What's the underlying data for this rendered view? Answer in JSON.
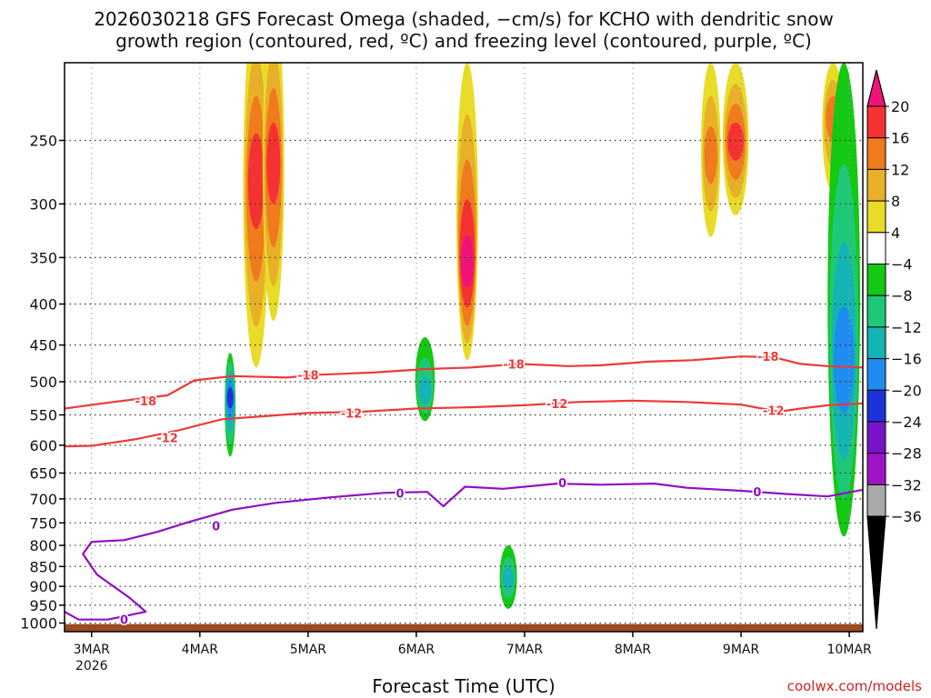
{
  "chart_data": {
    "type": "heatmap",
    "title": "2026030218 GFS Forecast Omega (shaded, −cm/s) for KCHO with dendritic snow growth region (contoured, red, °C) and freezing level (contoured, purple, °C)",
    "title_lines": [
      "2026030218 GFS Forecast Omega (shaded, −cm/s) for KCHO with dendritic snow",
      "growth region (contoured, red, ºC) and freezing level (contoured, purple, ºC)"
    ],
    "xlabel": "Forecast Time (UTC)",
    "ylabel": "",
    "credit": "coolwx.com/models",
    "x_start_day": 2.75,
    "x_end_day": 10.125,
    "x_ticks": [
      {
        "day": 3,
        "label": "3MAR",
        "sublabel": "2026"
      },
      {
        "day": 4,
        "label": "4MAR"
      },
      {
        "day": 5,
        "label": "5MAR"
      },
      {
        "day": 6,
        "label": "6MAR"
      },
      {
        "day": 7,
        "label": "7MAR"
      },
      {
        "day": 8,
        "label": "8MAR"
      },
      {
        "day": 9,
        "label": "9MAR"
      },
      {
        "day": 10,
        "label": "10MAR"
      }
    ],
    "y_ticks": [
      250,
      300,
      350,
      400,
      450,
      500,
      550,
      600,
      650,
      700,
      750,
      800,
      850,
      900,
      950,
      1000
    ],
    "y_range_hPa": [
      200,
      1025
    ],
    "ground_hPa": 1003,
    "colorbar": {
      "labels": [
        20,
        16,
        12,
        8,
        4,
        -4,
        -8,
        -12,
        -16,
        -20,
        -24,
        -28,
        -32,
        -36
      ],
      "colors": [
        "#f0147a",
        "#f53232",
        "#f07a1e",
        "#e8b028",
        "#e8dc28",
        "#ffffff",
        "#14c814",
        "#1ec878",
        "#14b4b4",
        "#1e8cf0",
        "#1e32dc",
        "#7814c8",
        "#a014c8",
        "#aaaaaa"
      ]
    },
    "shading_features": [
      {
        "day": 4.52,
        "p": 270,
        "value": 18,
        "width": 0.12,
        "top": 170,
        "bottom": 480
      },
      {
        "day": 4.68,
        "p": 260,
        "value": 16,
        "width": 0.1,
        "top": 170,
        "bottom": 420
      },
      {
        "day": 6.47,
        "p": 360,
        "value": 20,
        "width": 0.1,
        "top": 200,
        "bottom": 470
      },
      {
        "day": 8.72,
        "p": 260,
        "value": 14,
        "width": 0.09,
        "top": 200,
        "bottom": 330
      },
      {
        "day": 8.95,
        "p": 250,
        "value": 16,
        "width": 0.12,
        "top": 200,
        "bottom": 310
      },
      {
        "day": 9.85,
        "p": 230,
        "value": 12,
        "width": 0.1,
        "top": 200,
        "bottom": 290
      },
      {
        "day": 4.28,
        "p": 520,
        "value": -22,
        "width": 0.05,
        "top": 460,
        "bottom": 620
      },
      {
        "day": 6.08,
        "p": 520,
        "value": -14,
        "width": 0.09,
        "top": 440,
        "bottom": 560
      },
      {
        "day": 6.85,
        "p": 880,
        "value": -14,
        "width": 0.08,
        "top": 800,
        "bottom": 960
      },
      {
        "day": 9.95,
        "p": 470,
        "value": -16,
        "width": 0.15,
        "top": 200,
        "bottom": 780
      }
    ],
    "dendritic_minus18": [
      [
        2.75,
        540
      ],
      [
        3.2,
        530
      ],
      [
        3.7,
        520
      ],
      [
        3.95,
        498
      ],
      [
        4.3,
        492
      ],
      [
        4.8,
        494
      ],
      [
        5.1,
        490
      ],
      [
        5.6,
        487
      ],
      [
        6.1,
        482
      ],
      [
        6.5,
        480
      ],
      [
        6.95,
        475
      ],
      [
        7.4,
        478
      ],
      [
        7.7,
        477
      ],
      [
        8.15,
        472
      ],
      [
        8.55,
        470
      ],
      [
        9.0,
        465
      ],
      [
        9.3,
        466
      ],
      [
        9.55,
        475
      ],
      [
        9.8,
        478
      ],
      [
        10.125,
        480
      ]
    ],
    "dendritic_minus12": [
      [
        2.75,
        602
      ],
      [
        3.0,
        601
      ],
      [
        3.4,
        590
      ],
      [
        3.8,
        575
      ],
      [
        4.2,
        557
      ],
      [
        4.6,
        552
      ],
      [
        5.0,
        547
      ],
      [
        5.5,
        545
      ],
      [
        6.0,
        540
      ],
      [
        6.5,
        538
      ],
      [
        7.0,
        535
      ],
      [
        7.5,
        530
      ],
      [
        8.0,
        528
      ],
      [
        8.5,
        530
      ],
      [
        9.0,
        534
      ],
      [
        9.35,
        545
      ],
      [
        9.55,
        540
      ],
      [
        9.8,
        535
      ],
      [
        10.125,
        532
      ]
    ],
    "freezing_level": [
      [
        2.75,
        968
      ],
      [
        2.88,
        990
      ],
      [
        3.15,
        990
      ],
      [
        3.5,
        968
      ],
      [
        3.35,
        930
      ],
      [
        3.05,
        870
      ],
      [
        2.92,
        820
      ],
      [
        3.0,
        792
      ],
      [
        3.3,
        788
      ],
      [
        3.6,
        770
      ],
      [
        3.9,
        748
      ],
      [
        4.3,
        722
      ],
      [
        4.7,
        708
      ],
      [
        5.2,
        697
      ],
      [
        5.7,
        688
      ],
      [
        6.1,
        686
      ],
      [
        6.25,
        715
      ],
      [
        6.45,
        676
      ],
      [
        6.8,
        680
      ],
      [
        7.3,
        670
      ],
      [
        7.7,
        672
      ],
      [
        8.2,
        670
      ],
      [
        8.5,
        678
      ],
      [
        9.0,
        684
      ],
      [
        9.4,
        690
      ],
      [
        9.8,
        695
      ],
      [
        10.125,
        682
      ]
    ],
    "labels_minus18": [
      {
        "day": 3.5,
        "p": 528
      },
      {
        "day": 5.0,
        "p": 490
      },
      {
        "day": 6.9,
        "p": 475
      },
      {
        "day": 9.25,
        "p": 465
      }
    ],
    "labels_minus12": [
      {
        "day": 3.7,
        "p": 587
      },
      {
        "day": 5.4,
        "p": 547
      },
      {
        "day": 7.3,
        "p": 532
      },
      {
        "day": 9.3,
        "p": 543
      }
    ],
    "labels_zero": [
      {
        "day": 3.3,
        "p": 990
      },
      {
        "day": 4.15,
        "p": 756
      },
      {
        "day": 5.85,
        "p": 688
      },
      {
        "day": 7.35,
        "p": 668
      },
      {
        "day": 9.15,
        "p": 686
      }
    ]
  }
}
